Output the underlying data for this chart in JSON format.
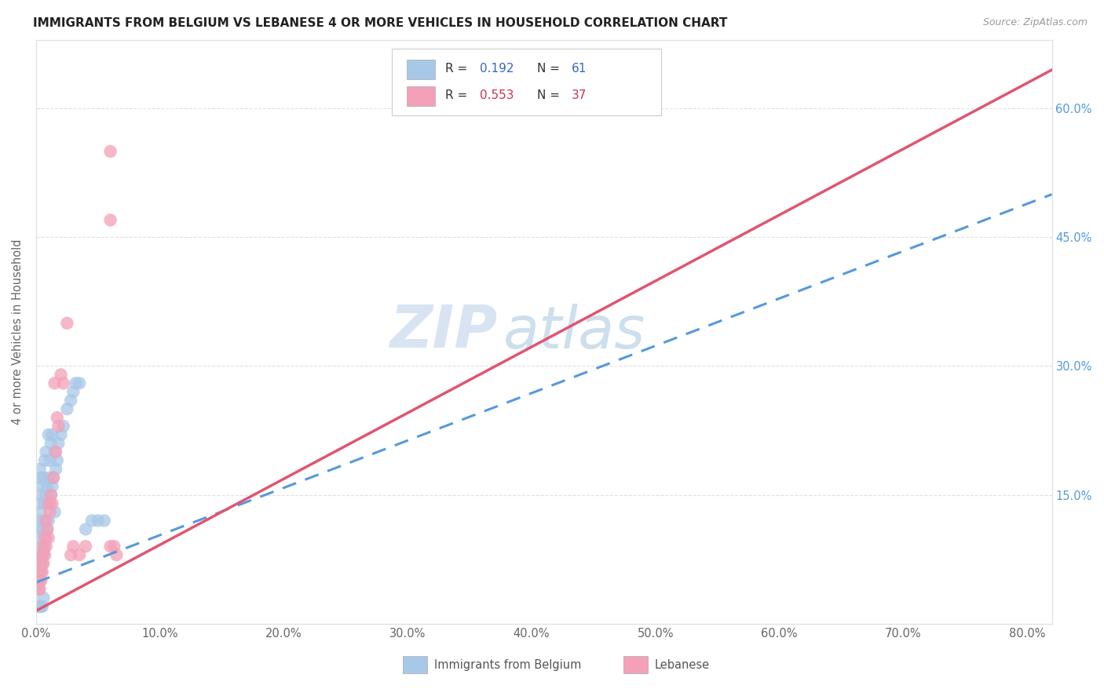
{
  "title": "IMMIGRANTS FROM BELGIUM VS LEBANESE 4 OR MORE VEHICLES IN HOUSEHOLD CORRELATION CHART",
  "source": "Source: ZipAtlas.com",
  "ylabel": "4 or more Vehicles in Household",
  "xlim": [
    0.0,
    0.82
  ],
  "ylim": [
    0.0,
    0.68
  ],
  "xtick_values": [
    0.0,
    0.1,
    0.2,
    0.3,
    0.4,
    0.5,
    0.6,
    0.7,
    0.8
  ],
  "ytick_values": [
    0.15,
    0.3,
    0.45,
    0.6
  ],
  "legend_r_belgium": "0.192",
  "legend_n_belgium": "61",
  "legend_r_lebanese": "0.553",
  "legend_n_lebanese": "37",
  "color_belgium": "#a8c8e8",
  "color_lebanese": "#f4a0b8",
  "color_line_belgium": "#5599dd",
  "color_line_lebanese": "#e05570",
  "watermark_zip": "ZIP",
  "watermark_atlas": "atlas",
  "bel_line_x0": 0.0,
  "bel_line_y0": 0.048,
  "bel_line_x1": 0.82,
  "bel_line_y1": 0.5,
  "leb_line_x0": 0.0,
  "leb_line_y0": 0.015,
  "leb_line_x1": 0.82,
  "leb_line_y1": 0.645,
  "bel_x": [
    0.001,
    0.001,
    0.001,
    0.002,
    0.002,
    0.002,
    0.002,
    0.003,
    0.003,
    0.003,
    0.003,
    0.003,
    0.004,
    0.004,
    0.004,
    0.004,
    0.005,
    0.005,
    0.005,
    0.006,
    0.006,
    0.006,
    0.007,
    0.007,
    0.007,
    0.008,
    0.008,
    0.008,
    0.009,
    0.009,
    0.01,
    0.01,
    0.01,
    0.011,
    0.011,
    0.012,
    0.012,
    0.013,
    0.013,
    0.014,
    0.015,
    0.015,
    0.016,
    0.017,
    0.018,
    0.02,
    0.022,
    0.025,
    0.028,
    0.03,
    0.032,
    0.035,
    0.04,
    0.045,
    0.05,
    0.055,
    0.002,
    0.003,
    0.004,
    0.005,
    0.006
  ],
  "bel_y": [
    0.05,
    0.08,
    0.12,
    0.04,
    0.07,
    0.1,
    0.14,
    0.05,
    0.08,
    0.11,
    0.15,
    0.18,
    0.06,
    0.09,
    0.13,
    0.17,
    0.07,
    0.11,
    0.16,
    0.08,
    0.12,
    0.17,
    0.09,
    0.14,
    0.19,
    0.1,
    0.15,
    0.2,
    0.11,
    0.16,
    0.12,
    0.17,
    0.22,
    0.14,
    0.19,
    0.15,
    0.21,
    0.16,
    0.22,
    0.17,
    0.13,
    0.2,
    0.18,
    0.19,
    0.21,
    0.22,
    0.23,
    0.25,
    0.26,
    0.27,
    0.28,
    0.28,
    0.11,
    0.12,
    0.12,
    0.12,
    0.02,
    0.02,
    0.02,
    0.02,
    0.03
  ],
  "leb_x": [
    0.001,
    0.002,
    0.003,
    0.003,
    0.004,
    0.004,
    0.005,
    0.005,
    0.006,
    0.006,
    0.007,
    0.007,
    0.008,
    0.008,
    0.009,
    0.01,
    0.01,
    0.011,
    0.012,
    0.013,
    0.014,
    0.015,
    0.016,
    0.017,
    0.018,
    0.02,
    0.022,
    0.025,
    0.028,
    0.03,
    0.035,
    0.04,
    0.06,
    0.065,
    0.06,
    0.063,
    0.06
  ],
  "leb_y": [
    0.04,
    0.05,
    0.04,
    0.06,
    0.05,
    0.07,
    0.06,
    0.08,
    0.07,
    0.09,
    0.08,
    0.1,
    0.09,
    0.12,
    0.11,
    0.1,
    0.14,
    0.13,
    0.15,
    0.14,
    0.17,
    0.28,
    0.2,
    0.24,
    0.23,
    0.29,
    0.28,
    0.35,
    0.08,
    0.09,
    0.08,
    0.09,
    0.55,
    0.08,
    0.09,
    0.09,
    0.47
  ]
}
